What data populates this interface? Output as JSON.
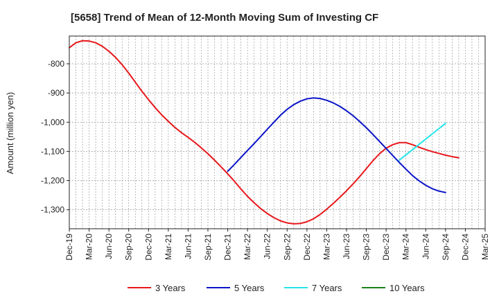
{
  "chart_data": {
    "type": "line",
    "title": "[5658]  Trend of Mean of 12-Month Moving Sum of Investing CF",
    "xlabel": "",
    "ylabel": "Amount (million yen)",
    "ylim": [
      -1365,
      -705
    ],
    "yticks": [
      -800,
      -900,
      -1000,
      -1100,
      -1200,
      -1300
    ],
    "ytick_labels": [
      "-800",
      "-900",
      "-1,000",
      "-1,100",
      "-1,200",
      "-1,300"
    ],
    "x_categories": [
      "Dec-19",
      "Mar-20",
      "Jun-20",
      "Sep-20",
      "Dec-20",
      "Mar-21",
      "Jun-21",
      "Sep-21",
      "Dec-21",
      "Mar-22",
      "Jun-22",
      "Sep-22",
      "Dec-22",
      "Mar-23",
      "Jun-23",
      "Sep-23",
      "Dec-23",
      "Mar-24",
      "Jun-24",
      "Sep-24",
      "Dec-24",
      "Mar-25"
    ],
    "x_unit": "month index from Dec-19 (each tick = 3 months)",
    "grid": true,
    "legend_position": "bottom",
    "series": [
      {
        "name": "3 Years",
        "color": "#e8171b",
        "points": [
          [
            0,
            -745
          ],
          [
            1,
            -728
          ],
          [
            2,
            -721
          ],
          [
            3,
            -722
          ],
          [
            4,
            -728
          ],
          [
            5,
            -740
          ],
          [
            6,
            -757
          ],
          [
            7,
            -778
          ],
          [
            8,
            -803
          ],
          [
            9,
            -832
          ],
          [
            10,
            -863
          ],
          [
            11,
            -894
          ],
          [
            12,
            -923
          ],
          [
            13,
            -950
          ],
          [
            14,
            -975
          ],
          [
            15,
            -997
          ],
          [
            16,
            -1018
          ],
          [
            17,
            -1036
          ],
          [
            18,
            -1052
          ],
          [
            19,
            -1069
          ],
          [
            20,
            -1088
          ],
          [
            21,
            -1108
          ],
          [
            22,
            -1130
          ],
          [
            23,
            -1153
          ],
          [
            24,
            -1177
          ],
          [
            25,
            -1202
          ],
          [
            26,
            -1229
          ],
          [
            27,
            -1254
          ],
          [
            28,
            -1276
          ],
          [
            29,
            -1296
          ],
          [
            30,
            -1313
          ],
          [
            31,
            -1327
          ],
          [
            32,
            -1338
          ],
          [
            33,
            -1345
          ],
          [
            34,
            -1348
          ],
          [
            35,
            -1347
          ],
          [
            36,
            -1341
          ],
          [
            37,
            -1331
          ],
          [
            38,
            -1316
          ],
          [
            39,
            -1298
          ],
          [
            40,
            -1278
          ],
          [
            41,
            -1257
          ],
          [
            42,
            -1235
          ],
          [
            43,
            -1211
          ],
          [
            44,
            -1186
          ],
          [
            45,
            -1159
          ],
          [
            46,
            -1132
          ],
          [
            47,
            -1108
          ],
          [
            48,
            -1089
          ],
          [
            49,
            -1077
          ],
          [
            50,
            -1070
          ],
          [
            51,
            -1070
          ],
          [
            52,
            -1077
          ],
          [
            53,
            -1086
          ],
          [
            54,
            -1094
          ],
          [
            55,
            -1101
          ],
          [
            56,
            -1107
          ],
          [
            57,
            -1113
          ],
          [
            58,
            -1118
          ],
          [
            59,
            -1122
          ]
        ]
      },
      {
        "name": "5 Years",
        "color": "#0a14c8",
        "points": [
          [
            24,
            -1168
          ],
          [
            25,
            -1145
          ],
          [
            26,
            -1121
          ],
          [
            27,
            -1097
          ],
          [
            28,
            -1073
          ],
          [
            29,
            -1049
          ],
          [
            30,
            -1024
          ],
          [
            31,
            -1000
          ],
          [
            32,
            -976
          ],
          [
            33,
            -956
          ],
          [
            34,
            -940
          ],
          [
            35,
            -928
          ],
          [
            36,
            -920
          ],
          [
            37,
            -917
          ],
          [
            38,
            -919
          ],
          [
            39,
            -925
          ],
          [
            40,
            -934
          ],
          [
            41,
            -946
          ],
          [
            42,
            -961
          ],
          [
            43,
            -978
          ],
          [
            44,
            -998
          ],
          [
            45,
            -1019
          ],
          [
            46,
            -1042
          ],
          [
            47,
            -1066
          ],
          [
            48,
            -1090
          ],
          [
            49,
            -1114
          ],
          [
            50,
            -1138
          ],
          [
            51,
            -1161
          ],
          [
            52,
            -1183
          ],
          [
            53,
            -1201
          ],
          [
            54,
            -1216
          ],
          [
            55,
            -1228
          ],
          [
            56,
            -1236
          ],
          [
            57,
            -1241
          ]
        ]
      },
      {
        "name": "7 Years",
        "color": "#22e4e8",
        "points": [
          [
            50,
            -1130
          ],
          [
            51,
            -1112
          ],
          [
            52,
            -1094
          ],
          [
            53,
            -1076
          ],
          [
            54,
            -1058
          ],
          [
            55,
            -1040
          ],
          [
            56,
            -1022
          ],
          [
            57,
            -1004
          ]
        ]
      },
      {
        "name": "10 Years",
        "color": "#1a7f1a",
        "points": []
      }
    ]
  }
}
